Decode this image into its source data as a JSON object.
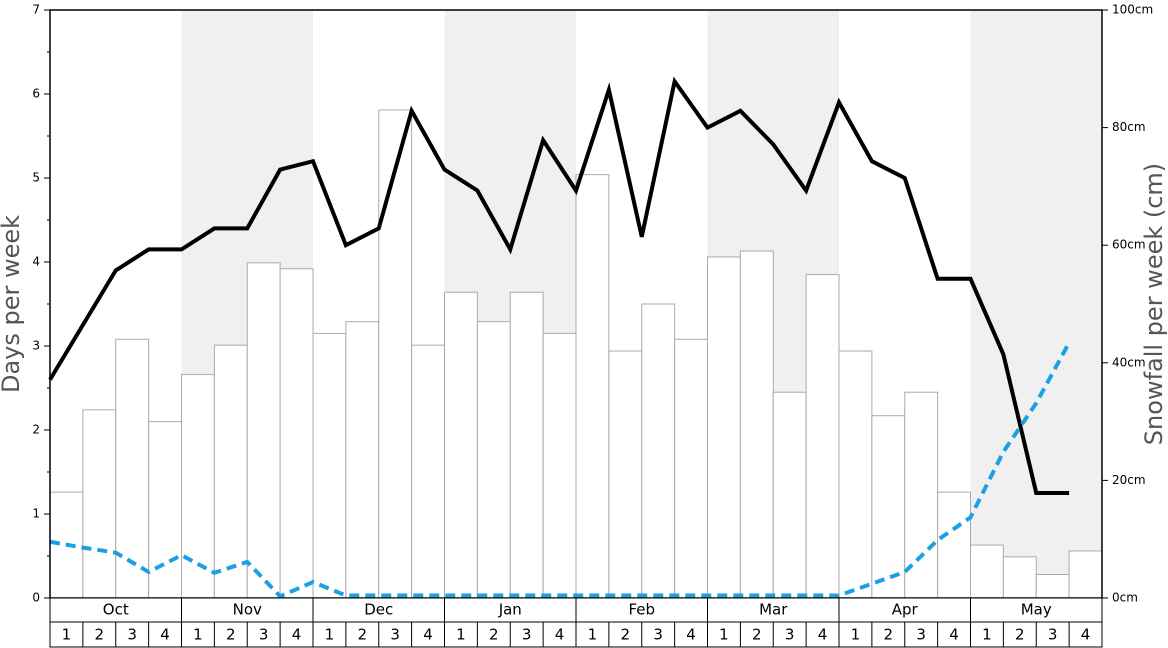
{
  "chart_data": {
    "type": "bar",
    "ylabel": "Days per week",
    "y2label": "Snowfall per week (cm)",
    "months": [
      "Oct",
      "Nov",
      "Dec",
      "Jan",
      "Feb",
      "Mar",
      "Apr",
      "May"
    ],
    "categories": [
      "1",
      "2",
      "3",
      "4",
      "1",
      "2",
      "3",
      "4",
      "1",
      "2",
      "3",
      "4",
      "1",
      "2",
      "3",
      "4",
      "1",
      "2",
      "3",
      "4",
      "1",
      "2",
      "3",
      "4",
      "1",
      "2",
      "3",
      "4",
      "1",
      "2",
      "3",
      "4"
    ],
    "band_color": "#f0f0f0",
    "series": [
      {
        "type": "bar",
        "axis": "y2",
        "color": "#ffffff",
        "stroke": "#aaaaaa",
        "values": [
          18,
          32,
          44,
          30,
          38,
          43,
          57,
          56,
          45,
          47,
          83,
          43,
          52,
          47,
          52,
          45,
          72,
          42,
          50,
          44,
          58,
          59,
          35,
          55,
          42,
          31,
          35,
          18,
          9,
          7,
          4,
          8
        ]
      },
      {
        "type": "line",
        "axis": "y",
        "color": "#000000",
        "dashed": false,
        "values": [
          2.6,
          3.25,
          3.9,
          4.15,
          4.15,
          4.4,
          4.4,
          5.1,
          5.2,
          4.2,
          4.4,
          5.8,
          5.1,
          4.85,
          4.15,
          5.45,
          4.85,
          6.05,
          4.3,
          6.15,
          5.6,
          5.8,
          5.4,
          4.85,
          5.9,
          5.2,
          5,
          3.8,
          3.8,
          2.9,
          1.25,
          1.25
        ]
      },
      {
        "type": "line",
        "axis": "y",
        "color": "#1ba1e2",
        "dashed": true,
        "values": [
          0.67,
          0.6,
          0.54,
          0.31,
          0.51,
          0.3,
          0.43,
          0.02,
          0.19,
          0.03,
          0.03,
          0.03,
          0.03,
          0.03,
          0.03,
          0.03,
          0.03,
          0.03,
          0.03,
          0.03,
          0.03,
          0.03,
          0.03,
          0.03,
          0.03,
          0.17,
          0.31,
          0.69,
          0.96,
          1.74,
          2.32,
          3.04
        ]
      }
    ],
    "ylim": [
      0,
      7
    ],
    "yticks": [
      0,
      1,
      2,
      3,
      4,
      5,
      6,
      7
    ],
    "y2lim": [
      0,
      100
    ],
    "y2ticks": [
      {
        "value": 0,
        "label": "0cm"
      },
      {
        "value": 20,
        "label": "20cm"
      },
      {
        "value": 40,
        "label": "40cm"
      },
      {
        "value": 60,
        "label": "60cm"
      },
      {
        "value": 80,
        "label": "80cm"
      },
      {
        "value": 100,
        "label": "100cm"
      }
    ]
  }
}
